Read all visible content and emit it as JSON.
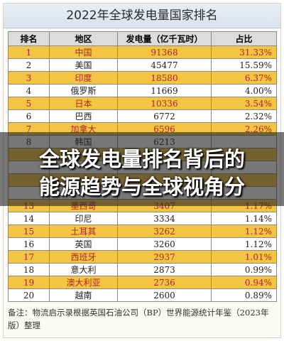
{
  "title": "2022年全球发电量国家排名",
  "headers": [
    "排名",
    "地区",
    "发电量（亿千瓦时）",
    "占比"
  ],
  "rows": [
    {
      "rank": "1",
      "region": "中国",
      "output": "91368",
      "share": "31.33%",
      "highlight": true
    },
    {
      "rank": "2",
      "region": "美国",
      "output": "45477",
      "share": "15.59%",
      "highlight": false
    },
    {
      "rank": "3",
      "region": "印度",
      "output": "18580",
      "share": "6.37%",
      "highlight": true
    },
    {
      "rank": "4",
      "region": "俄罗斯",
      "output": "11669",
      "share": "4.00%",
      "highlight": false
    },
    {
      "rank": "5",
      "region": "日本",
      "output": "10336",
      "share": "3.54%",
      "highlight": true
    },
    {
      "rank": "6",
      "region": "巴西",
      "output": "6772",
      "share": "2.32%",
      "highlight": false
    },
    {
      "rank": "7",
      "region": "加拿大",
      "output": "6596",
      "share": "2.26%",
      "highlight": true
    },
    {
      "rank": "8",
      "region": "韩国",
      "output": "6213",
      "share": "",
      "highlight": false
    },
    {
      "rank": "",
      "region": "",
      "output": "",
      "share": "",
      "highlight": true
    },
    {
      "rank": "",
      "region": "",
      "output": "",
      "share": "",
      "highlight": false
    },
    {
      "rank": "",
      "region": "",
      "output": "",
      "share": "",
      "highlight": true
    },
    {
      "rank": "",
      "region": "",
      "output": "",
      "share": "",
      "highlight": false
    },
    {
      "rank": "13",
      "region": "墨西哥",
      "output": "3407",
      "share": "1.17%",
      "highlight": true
    },
    {
      "rank": "14",
      "region": "印尼",
      "output": "3334",
      "share": "1.14%",
      "highlight": false
    },
    {
      "rank": "15",
      "region": "土耳其",
      "output": "3262",
      "share": "1.12%",
      "highlight": true
    },
    {
      "rank": "16",
      "region": "英国",
      "output": "3260",
      "share": "1.12%",
      "highlight": false
    },
    {
      "rank": "17",
      "region": "西班牙",
      "output": "2937",
      "share": "1.01%",
      "highlight": true
    },
    {
      "rank": "18",
      "region": "意大利",
      "output": "2873",
      "share": "0.99%",
      "highlight": false
    },
    {
      "rank": "19",
      "region": "澳大利亚",
      "output": "2736",
      "share": "0.94%",
      "highlight": true
    },
    {
      "rank": "20",
      "region": "越南",
      "output": "2600",
      "share": "0.89%",
      "highlight": false
    }
  ],
  "note": "备注：物流启示录根据英国石油公司（BP）世界能源统计年鉴（2023年版）整理",
  "headline_line1": "全球发电量排名背后的",
  "headline_line2": "能源趋势与全球视角分",
  "colors": {
    "highlight_row": "#f4c542",
    "highlight_text": "#b0222a",
    "header_bg": "#dcdcdc"
  }
}
